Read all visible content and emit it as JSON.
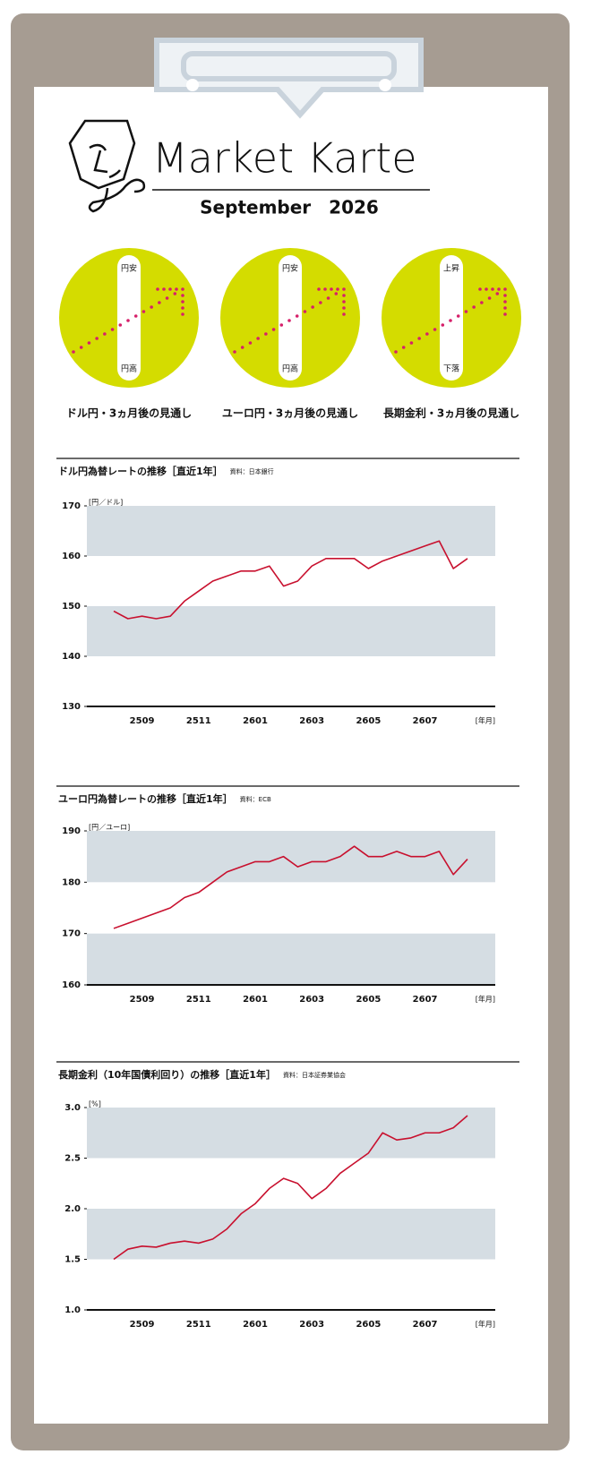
{
  "header": {
    "title": "Market Karte",
    "date": "September　2026"
  },
  "outlook": [
    {
      "top": "円安",
      "bottom": "円高",
      "caption": "ドル円・3ヵ月後の見通し"
    },
    {
      "top": "円安",
      "bottom": "円高",
      "caption": "ユーロ円・3ヵ月後の見通し"
    },
    {
      "top": "上昇",
      "bottom": "下落",
      "caption": "長期金利・3ヵ月後の見通し"
    }
  ],
  "chart_data": [
    {
      "type": "line",
      "title": "ドル円為替レートの推移［直近1年］",
      "source": "資料：日本銀行",
      "y_unit": "[円／ドル]",
      "x_unit": "[年月]",
      "color": "#c8102e",
      "categories": [
        null,
        null,
        "2509",
        null,
        null,
        null,
        "2511",
        null,
        null,
        null,
        "2601",
        null,
        null,
        null,
        "2603",
        null,
        null,
        null,
        "2605",
        null,
        null,
        null,
        "2607",
        null,
        null,
        null
      ],
      "values": [
        149,
        147.5,
        148,
        147.5,
        148,
        151,
        153,
        155,
        156,
        157,
        157,
        158,
        154,
        155,
        158,
        159.5,
        159.5,
        159.5,
        157.5,
        159,
        160,
        161,
        162,
        163,
        157.5,
        159.5
      ],
      "ylim": [
        130,
        170
      ],
      "yticks": [
        130,
        140,
        150,
        160,
        170
      ]
    },
    {
      "type": "line",
      "title": "ユーロ円為替レートの推移［直近1年］",
      "source": "資料：ECB",
      "y_unit": "[円／ユーロ]",
      "x_unit": "[年月]",
      "color": "#c8102e",
      "categories": [
        null,
        null,
        "2509",
        null,
        null,
        null,
        "2511",
        null,
        null,
        null,
        "2601",
        null,
        null,
        null,
        "2603",
        null,
        null,
        null,
        "2605",
        null,
        null,
        null,
        "2607",
        null,
        null,
        null
      ],
      "values": [
        171,
        172,
        173,
        174,
        175,
        177,
        178,
        180,
        182,
        183,
        184,
        184,
        185,
        183,
        184,
        184,
        185,
        187,
        185,
        185,
        186,
        185,
        185,
        186,
        181.5,
        184.5
      ],
      "ylim": [
        160,
        190
      ],
      "yticks": [
        160,
        170,
        180,
        190
      ]
    },
    {
      "type": "line",
      "title": "長期金利（10年国債利回り）の推移［直近1年］",
      "source": "資料：日本証券業協会",
      "y_unit": "[%]",
      "x_unit": "[年月]",
      "color": "#c8102e",
      "categories": [
        null,
        null,
        "2509",
        null,
        null,
        null,
        "2511",
        null,
        null,
        null,
        "2601",
        null,
        null,
        null,
        "2603",
        null,
        null,
        null,
        "2605",
        null,
        null,
        null,
        "2607",
        null,
        null,
        null
      ],
      "values": [
        1.5,
        1.6,
        1.63,
        1.62,
        1.66,
        1.68,
        1.66,
        1.7,
        1.8,
        1.95,
        2.05,
        2.2,
        2.3,
        2.25,
        2.1,
        2.2,
        2.35,
        2.45,
        2.55,
        2.75,
        2.68,
        2.7,
        2.75,
        2.75,
        2.8,
        2.92
      ],
      "ylim": [
        1.0,
        3.0
      ],
      "yticks": [
        {
          "value": 1.0,
          "label": "1.0"
        },
        1.5,
        {
          "value": 2.0,
          "label": "2.0"
        },
        2.5,
        {
          "value": 3.0,
          "label": "3.0"
        }
      ]
    }
  ]
}
